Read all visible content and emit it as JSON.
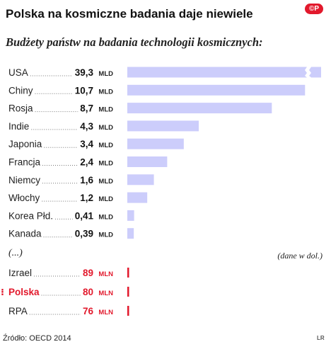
{
  "header": {
    "title": "Polska na kosmiczne badania daje niewiele",
    "logo_text": "©P",
    "subtitle": "Budżety państw na badania technologii kosmicznych:"
  },
  "chart_data": {
    "type": "bar",
    "orientation": "horizontal",
    "title": "Polska na kosmiczne badania daje niewiele",
    "subtitle": "Budżety państw na badania technologii kosmicznych:",
    "note": "(dane w dol.)",
    "axis_break_on_first_bar": true,
    "categories": [
      "USA",
      "Chiny",
      "Rosja",
      "Indie",
      "Japonia",
      "Francja",
      "Niemcy",
      "Włochy",
      "Korea Płd.",
      "Kanada"
    ],
    "values": [
      39.3,
      10.7,
      8.7,
      4.3,
      3.4,
      2.4,
      1.6,
      1.2,
      0.41,
      0.39
    ],
    "value_labels": [
      "39,3",
      "10,7",
      "8,7",
      "4,3",
      "3,4",
      "2,4",
      "1,6",
      "1,2",
      "0,41",
      "0,39"
    ],
    "unit_label": "MLD",
    "xlim": [
      0,
      10.9
    ],
    "bar_color": "#cccdfb",
    "gap_marker": "(...)",
    "small_categories": [
      "Izrael",
      "Polska",
      "RPA"
    ],
    "small_values": [
      89,
      80,
      76
    ],
    "small_value_labels": [
      "89",
      "80",
      "76"
    ],
    "small_unit_label": "MLN",
    "small_color": "#e2192c",
    "highlight": "Polska"
  },
  "footer": {
    "source": "Źródło: OECD 2014",
    "tag": "LR"
  }
}
